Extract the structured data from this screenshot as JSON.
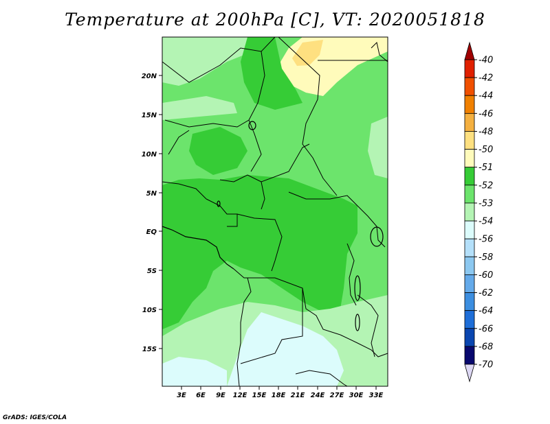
{
  "title": "Temperature at 200hPa [C], VT: 2020051818",
  "credit": "GrADS: IGES/COLA",
  "map": {
    "lat_labels": [
      "20N",
      "15N",
      "10N",
      "5N",
      "EQ",
      "5S",
      "10S",
      "15S"
    ],
    "lon_labels": [
      "3E",
      "6E",
      "9E",
      "12E",
      "15E",
      "18E",
      "21E",
      "24E",
      "27E",
      "30E",
      "33E"
    ]
  },
  "colorbar": {
    "labels": [
      "-40",
      "-42",
      "-44",
      "-46",
      "-48",
      "-50",
      "-51",
      "-52",
      "-53",
      "-54",
      "-56",
      "-58",
      "-60",
      "-62",
      "-64",
      "-66",
      "-68",
      "-70"
    ],
    "colors": [
      "#a00000",
      "#e02000",
      "#f05000",
      "#f08000",
      "#f4b040",
      "#fee080",
      "#fffbbb",
      "#36cc36",
      "#6ce46c",
      "#b4f4b4",
      "#dcfcfc",
      "#b4e0fa",
      "#8cc8f0",
      "#64aaea",
      "#3c8ee0",
      "#1e6ed8",
      "#0a46b0",
      "#08086e",
      "#ddd8f4"
    ]
  }
}
